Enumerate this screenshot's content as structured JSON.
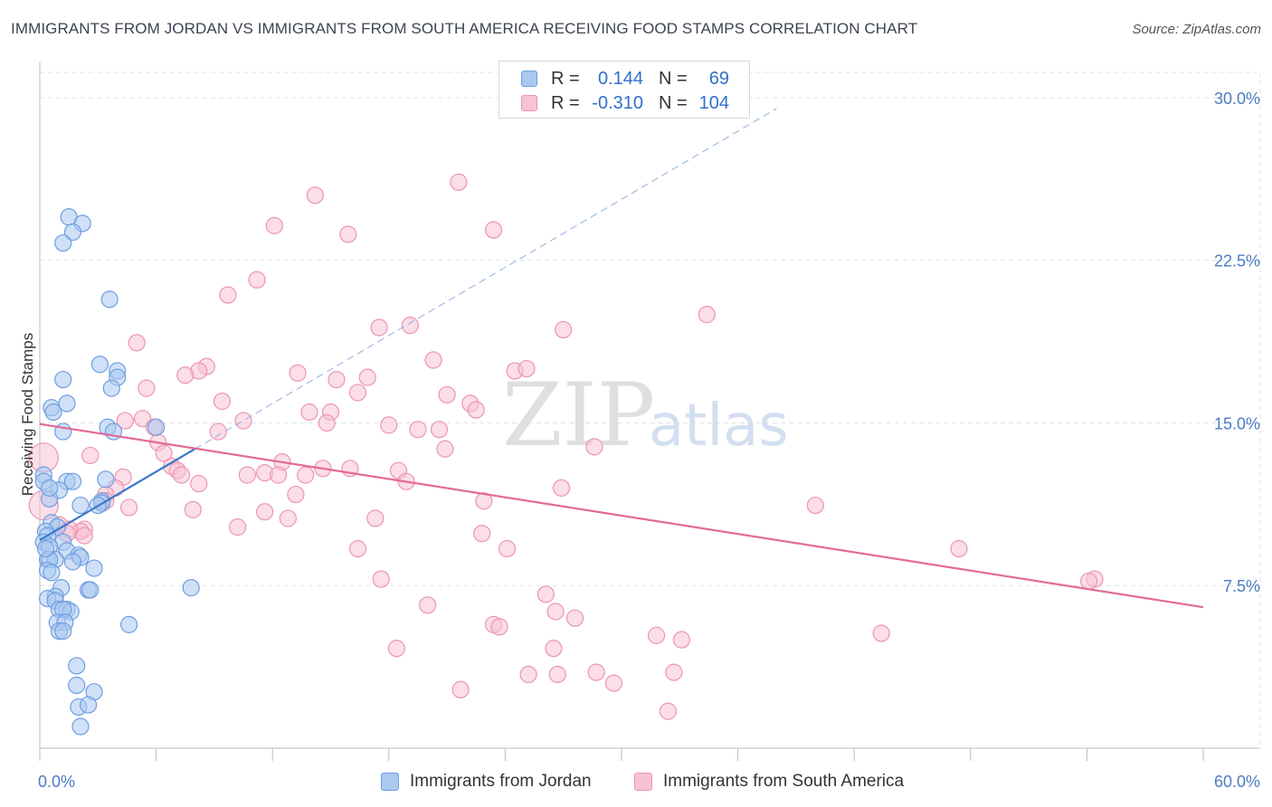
{
  "title": "IMMIGRANTS FROM JORDAN VS IMMIGRANTS FROM SOUTH AMERICA RECEIVING FOOD STAMPS CORRELATION CHART",
  "source": "Source: ZipAtlas.com",
  "watermark": {
    "zip": "ZIP",
    "atlas": "atlas"
  },
  "legend": {
    "series1": {
      "r_label": "R =",
      "r_value": "0.144",
      "n_label": "N =",
      "n_value": "69"
    },
    "series2": {
      "r_label": "R =",
      "r_value": "-0.310",
      "n_label": "N =",
      "n_value": "104"
    }
  },
  "bottom_legend": {
    "series1": "Immigrants from Jordan",
    "series2": "Immigrants from South America"
  },
  "colors": {
    "jordan_fill": "#aac8f0",
    "jordan_stroke": "#6f9de0",
    "jordan_line": "#3a78cc",
    "sa_fill": "#f7c3d4",
    "sa_stroke": "#ec94b3",
    "sa_line": "#e26a98",
    "grid": "#e3e3e3",
    "tick_text": "#4a7cc4"
  },
  "chart_data": {
    "type": "scatter",
    "title": "IMMIGRANTS FROM JORDAN VS IMMIGRANTS FROM SOUTH AMERICA RECEIVING FOOD STAMPS CORRELATION CHART",
    "xlabel": "",
    "ylabel": "Receiving Food Stamps",
    "xlim": [
      0,
      60
    ],
    "ylim": [
      0,
      31.5
    ],
    "x_tick_labels": {
      "min": "0.0%",
      "max": "60.0%"
    },
    "y_ticks": [
      {
        "value": 7.5,
        "label": "7.5%"
      },
      {
        "value": 15.0,
        "label": "15.0%"
      },
      {
        "value": 22.5,
        "label": "22.5%"
      },
      {
        "value": 30.0,
        "label": "30.0%"
      }
    ],
    "series": [
      {
        "name": "Immigrants from Jordan",
        "R": 0.144,
        "N": 69,
        "trend": {
          "x0": 0.0,
          "y0": 9.6,
          "x1": 8.0,
          "y1": 13.8,
          "dash_to_x": 38.0,
          "dash_to_y": 29.5
        },
        "points": [
          {
            "x": 1.5,
            "y": 24.5
          },
          {
            "x": 2.2,
            "y": 24.2
          },
          {
            "x": 1.7,
            "y": 23.8
          },
          {
            "x": 1.2,
            "y": 23.3
          },
          {
            "x": 3.6,
            "y": 20.7
          },
          {
            "x": 3.1,
            "y": 17.7
          },
          {
            "x": 4.0,
            "y": 17.4
          },
          {
            "x": 4.0,
            "y": 17.1
          },
          {
            "x": 1.2,
            "y": 17.0
          },
          {
            "x": 3.7,
            "y": 16.6
          },
          {
            "x": 1.4,
            "y": 15.9
          },
          {
            "x": 0.6,
            "y": 15.7
          },
          {
            "x": 0.7,
            "y": 15.5
          },
          {
            "x": 6.0,
            "y": 14.8
          },
          {
            "x": 3.5,
            "y": 14.8
          },
          {
            "x": 3.8,
            "y": 14.6
          },
          {
            "x": 1.2,
            "y": 14.6
          },
          {
            "x": 0.2,
            "y": 12.6
          },
          {
            "x": 0.2,
            "y": 12.3
          },
          {
            "x": 1.4,
            "y": 12.3
          },
          {
            "x": 1.7,
            "y": 12.3
          },
          {
            "x": 3.4,
            "y": 12.4
          },
          {
            "x": 1.0,
            "y": 11.9
          },
          {
            "x": 0.5,
            "y": 11.5
          },
          {
            "x": 3.2,
            "y": 11.4
          },
          {
            "x": 2.1,
            "y": 11.2
          },
          {
            "x": 3.2,
            "y": 11.3
          },
          {
            "x": 0.6,
            "y": 10.4
          },
          {
            "x": 0.9,
            "y": 10.2
          },
          {
            "x": 0.3,
            "y": 10.0
          },
          {
            "x": 0.4,
            "y": 9.8
          },
          {
            "x": 0.2,
            "y": 9.5
          },
          {
            "x": 1.2,
            "y": 9.5
          },
          {
            "x": 0.5,
            "y": 9.3
          },
          {
            "x": 1.4,
            "y": 9.1
          },
          {
            "x": 2.0,
            "y": 8.9
          },
          {
            "x": 2.1,
            "y": 8.8
          },
          {
            "x": 0.4,
            "y": 8.7
          },
          {
            "x": 0.8,
            "y": 8.7
          },
          {
            "x": 0.5,
            "y": 8.7
          },
          {
            "x": 1.7,
            "y": 8.6
          },
          {
            "x": 2.8,
            "y": 8.3
          },
          {
            "x": 0.4,
            "y": 8.2
          },
          {
            "x": 0.6,
            "y": 8.1
          },
          {
            "x": 1.1,
            "y": 7.4
          },
          {
            "x": 2.5,
            "y": 7.3
          },
          {
            "x": 2.6,
            "y": 7.3
          },
          {
            "x": 7.8,
            "y": 7.4
          },
          {
            "x": 0.8,
            "y": 7.0
          },
          {
            "x": 0.4,
            "y": 6.9
          },
          {
            "x": 0.8,
            "y": 6.8
          },
          {
            "x": 1.0,
            "y": 6.4
          },
          {
            "x": 1.4,
            "y": 6.4
          },
          {
            "x": 1.6,
            "y": 6.3
          },
          {
            "x": 1.2,
            "y": 6.4
          },
          {
            "x": 0.9,
            "y": 5.8
          },
          {
            "x": 1.3,
            "y": 5.8
          },
          {
            "x": 4.6,
            "y": 5.7
          },
          {
            "x": 1.0,
            "y": 5.4
          },
          {
            "x": 1.2,
            "y": 5.4
          },
          {
            "x": 1.9,
            "y": 3.8
          },
          {
            "x": 1.9,
            "y": 2.9
          },
          {
            "x": 2.8,
            "y": 2.6
          },
          {
            "x": 2.0,
            "y": 1.9
          },
          {
            "x": 2.5,
            "y": 2.0
          },
          {
            "x": 2.1,
            "y": 1.0
          },
          {
            "x": 0.5,
            "y": 12.0
          },
          {
            "x": 0.3,
            "y": 9.2
          },
          {
            "x": 3.0,
            "y": 11.2
          }
        ]
      },
      {
        "name": "Immigrants from South America",
        "R": -0.31,
        "N": 104,
        "trend": {
          "x0": 0.0,
          "y0": 14.95,
          "x1": 60.0,
          "y1": 6.5
        },
        "points": [
          {
            "x": 21.6,
            "y": 26.1
          },
          {
            "x": 14.2,
            "y": 25.5
          },
          {
            "x": 12.1,
            "y": 24.1
          },
          {
            "x": 23.4,
            "y": 23.9
          },
          {
            "x": 15.9,
            "y": 23.7
          },
          {
            "x": 11.2,
            "y": 21.6
          },
          {
            "x": 9.7,
            "y": 20.9
          },
          {
            "x": 34.4,
            "y": 20.0
          },
          {
            "x": 17.5,
            "y": 19.4
          },
          {
            "x": 19.1,
            "y": 19.5
          },
          {
            "x": 27.0,
            "y": 19.3
          },
          {
            "x": 5.0,
            "y": 18.7
          },
          {
            "x": 20.3,
            "y": 17.9
          },
          {
            "x": 8.6,
            "y": 17.6
          },
          {
            "x": 8.2,
            "y": 17.4
          },
          {
            "x": 24.5,
            "y": 17.4
          },
          {
            "x": 25.1,
            "y": 17.5
          },
          {
            "x": 13.3,
            "y": 17.3
          },
          {
            "x": 7.5,
            "y": 17.2
          },
          {
            "x": 15.3,
            "y": 17.0
          },
          {
            "x": 16.9,
            "y": 17.1
          },
          {
            "x": 5.5,
            "y": 16.6
          },
          {
            "x": 16.4,
            "y": 16.4
          },
          {
            "x": 21.0,
            "y": 16.3
          },
          {
            "x": 9.4,
            "y": 16.0
          },
          {
            "x": 22.2,
            "y": 15.9
          },
          {
            "x": 22.5,
            "y": 15.6
          },
          {
            "x": 13.9,
            "y": 15.5
          },
          {
            "x": 15.0,
            "y": 15.5
          },
          {
            "x": 5.3,
            "y": 15.2
          },
          {
            "x": 4.4,
            "y": 15.1
          },
          {
            "x": 10.5,
            "y": 15.1
          },
          {
            "x": 14.8,
            "y": 15.0
          },
          {
            "x": 18.0,
            "y": 14.9
          },
          {
            "x": 19.5,
            "y": 14.7
          },
          {
            "x": 20.6,
            "y": 14.7
          },
          {
            "x": 5.9,
            "y": 14.8
          },
          {
            "x": 9.2,
            "y": 14.6
          },
          {
            "x": 6.1,
            "y": 14.1
          },
          {
            "x": 28.6,
            "y": 13.9
          },
          {
            "x": 20.9,
            "y": 13.8
          },
          {
            "x": 6.4,
            "y": 13.6
          },
          {
            "x": 2.6,
            "y": 13.5
          },
          {
            "x": 0.2,
            "y": 13.4
          },
          {
            "x": 12.5,
            "y": 13.2
          },
          {
            "x": 6.8,
            "y": 13.0
          },
          {
            "x": 14.6,
            "y": 12.9
          },
          {
            "x": 16.0,
            "y": 12.9
          },
          {
            "x": 18.5,
            "y": 12.8
          },
          {
            "x": 7.1,
            "y": 12.8
          },
          {
            "x": 11.6,
            "y": 12.7
          },
          {
            "x": 10.7,
            "y": 12.6
          },
          {
            "x": 7.3,
            "y": 12.6
          },
          {
            "x": 12.3,
            "y": 12.6
          },
          {
            "x": 13.7,
            "y": 12.6
          },
          {
            "x": 4.3,
            "y": 12.5
          },
          {
            "x": 18.9,
            "y": 12.3
          },
          {
            "x": 8.2,
            "y": 12.2
          },
          {
            "x": 26.9,
            "y": 12.0
          },
          {
            "x": 3.9,
            "y": 12.0
          },
          {
            "x": 3.4,
            "y": 11.7
          },
          {
            "x": 13.2,
            "y": 11.7
          },
          {
            "x": 3.4,
            "y": 11.4
          },
          {
            "x": 22.9,
            "y": 11.4
          },
          {
            "x": 3.2,
            "y": 11.3
          },
          {
            "x": 0.2,
            "y": 11.2
          },
          {
            "x": 40.0,
            "y": 11.2
          },
          {
            "x": 4.6,
            "y": 11.1
          },
          {
            "x": 7.9,
            "y": 11.0
          },
          {
            "x": 11.6,
            "y": 10.9
          },
          {
            "x": 12.8,
            "y": 10.6
          },
          {
            "x": 17.3,
            "y": 10.6
          },
          {
            "x": 1.0,
            "y": 10.3
          },
          {
            "x": 10.2,
            "y": 10.2
          },
          {
            "x": 2.3,
            "y": 10.1
          },
          {
            "x": 2.1,
            "y": 10.0
          },
          {
            "x": 1.5,
            "y": 10.1
          },
          {
            "x": 1.4,
            "y": 9.9
          },
          {
            "x": 22.8,
            "y": 9.9
          },
          {
            "x": 2.3,
            "y": 9.8
          },
          {
            "x": 16.4,
            "y": 9.2
          },
          {
            "x": 24.1,
            "y": 9.2
          },
          {
            "x": 47.4,
            "y": 9.2
          },
          {
            "x": 17.6,
            "y": 7.8
          },
          {
            "x": 54.4,
            "y": 7.8
          },
          {
            "x": 54.1,
            "y": 7.7
          },
          {
            "x": 26.1,
            "y": 7.1
          },
          {
            "x": 20.0,
            "y": 6.6
          },
          {
            "x": 26.6,
            "y": 6.3
          },
          {
            "x": 27.6,
            "y": 6.0
          },
          {
            "x": 23.4,
            "y": 5.7
          },
          {
            "x": 23.7,
            "y": 5.6
          },
          {
            "x": 31.8,
            "y": 5.2
          },
          {
            "x": 33.1,
            "y": 5.0
          },
          {
            "x": 43.4,
            "y": 5.3
          },
          {
            "x": 18.4,
            "y": 4.6
          },
          {
            "x": 26.5,
            "y": 4.6
          },
          {
            "x": 25.2,
            "y": 3.4
          },
          {
            "x": 26.7,
            "y": 3.4
          },
          {
            "x": 28.7,
            "y": 3.5
          },
          {
            "x": 32.7,
            "y": 3.5
          },
          {
            "x": 29.6,
            "y": 3.0
          },
          {
            "x": 21.7,
            "y": 2.7
          },
          {
            "x": 32.4,
            "y": 1.7
          }
        ]
      }
    ]
  }
}
